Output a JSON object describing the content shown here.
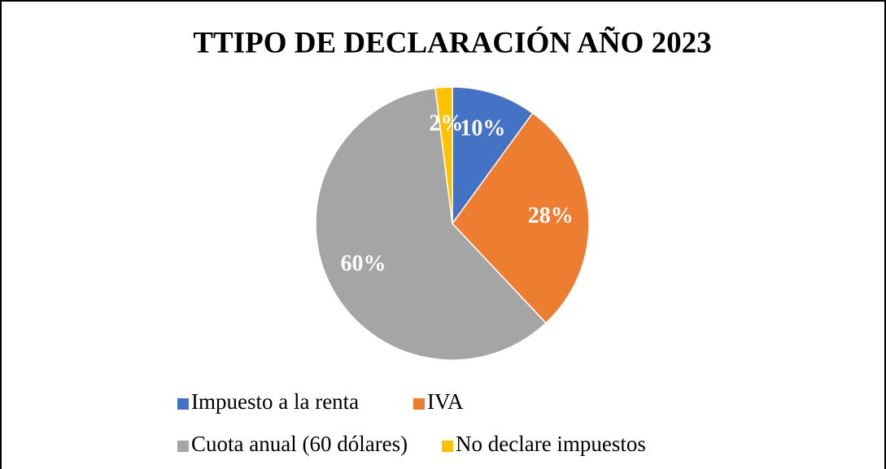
{
  "chart_data": {
    "type": "pie",
    "title": "TTIPO DE DECLARACIÓN AÑO 2023",
    "categories": [
      "Impuesto a la renta",
      "IVA",
      "Cuota anual (60 dólares)",
      "No declare impuestos"
    ],
    "values": [
      10,
      28,
      60,
      2
    ],
    "value_labels": [
      "10%",
      "28%",
      "60%",
      "2%"
    ],
    "colors": [
      "#4472c4",
      "#ed7d31",
      "#a5a5a5",
      "#ffc000"
    ],
    "legend": "bottom"
  }
}
